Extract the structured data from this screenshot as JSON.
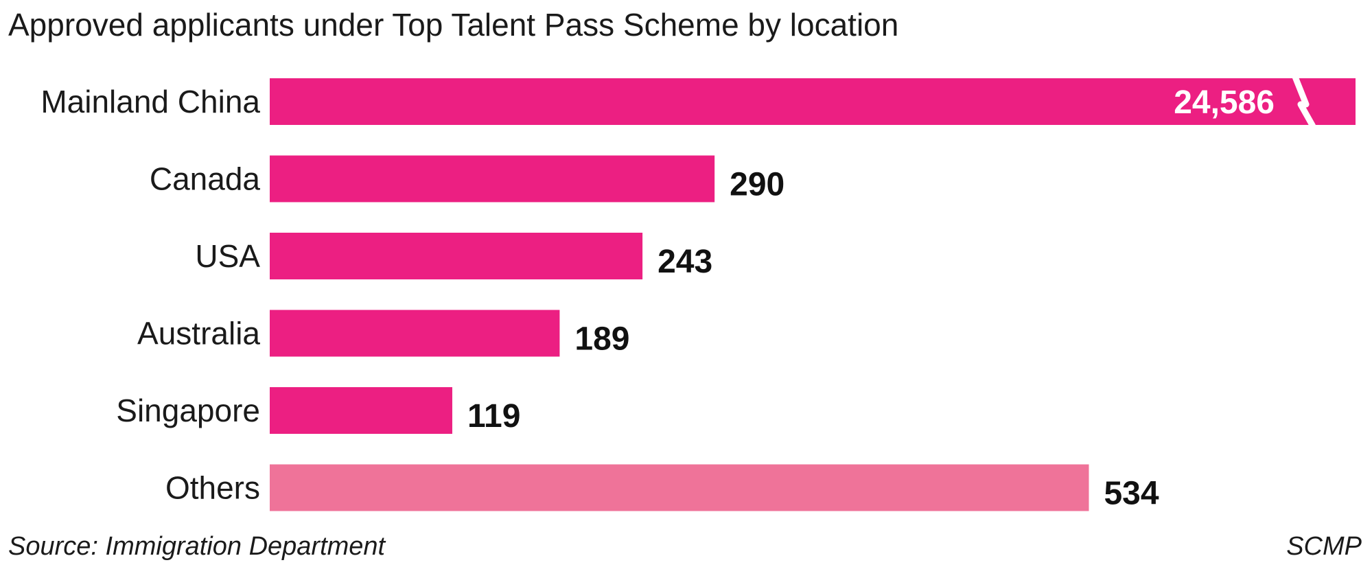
{
  "chart_data": {
    "type": "bar",
    "orientation": "horizontal",
    "title": "Approved applicants under Top Talent Pass Scheme by location",
    "categories": [
      "Mainland China",
      "Canada",
      "USA",
      "Australia",
      "Singapore",
      "Others"
    ],
    "values": [
      24586,
      290,
      243,
      189,
      119,
      534
    ],
    "value_labels": [
      "24,586",
      "290",
      "243",
      "189",
      "119",
      "534"
    ],
    "axis_break": {
      "category": "Mainland China",
      "note": "bar truncated with break mark"
    },
    "bar_colors": [
      "#ec1f82",
      "#ec1f82",
      "#ec1f82",
      "#ec1f82",
      "#ec1f82",
      "#ef7399"
    ],
    "grid": false,
    "source": "Source: Immigration Department",
    "credit": "SCMP"
  },
  "colors": {
    "primary_bar": "#ec1f82",
    "others_bar": "#ef7399",
    "text": "#1a1a1a",
    "background": "#ffffff"
  }
}
